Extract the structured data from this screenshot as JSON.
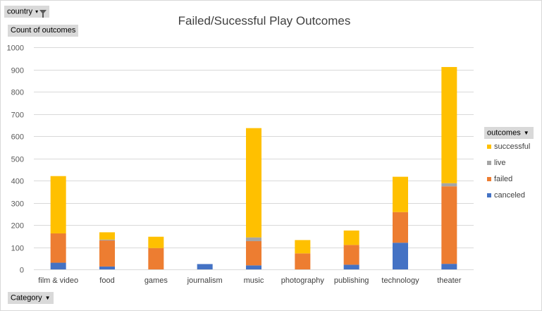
{
  "filters": {
    "country_label": "country",
    "values_label": "Count of outcomes",
    "category_label": "Category",
    "legend_label": "outcomes"
  },
  "icons": {
    "filter": "funnel-filter-icon",
    "dropdown": "dropdown-arrow-icon"
  },
  "chart_data": {
    "type": "bar",
    "stacked": true,
    "title": "Failed/Sucessful Play Outcomes",
    "xlabel": "",
    "ylabel": "",
    "ylim": [
      0,
      1000
    ],
    "yticks": [
      0,
      100,
      200,
      300,
      400,
      500,
      600,
      700,
      800,
      900,
      1000
    ],
    "grid": true,
    "legend_position": "right",
    "categories": [
      "film & video",
      "food",
      "games",
      "journalism",
      "music",
      "photography",
      "publishing",
      "technology",
      "theater"
    ],
    "series": [
      {
        "name": "canceled",
        "color": "#4472c4",
        "values": [
          30,
          13,
          0,
          24,
          18,
          0,
          21,
          120,
          25
        ]
      },
      {
        "name": "failed",
        "color": "#ed7d31",
        "values": [
          132,
          117,
          96,
          0,
          109,
          72,
          89,
          138,
          349
        ]
      },
      {
        "name": "live",
        "color": "#a5a5a5",
        "values": [
          0,
          4,
          0,
          0,
          17,
          0,
          0,
          0,
          14
        ]
      },
      {
        "name": "successful",
        "color": "#ffc000",
        "values": [
          258,
          33,
          51,
          0,
          492,
          60,
          65,
          159,
          523
        ]
      }
    ],
    "legend_order": [
      "successful",
      "live",
      "failed",
      "canceled"
    ]
  }
}
